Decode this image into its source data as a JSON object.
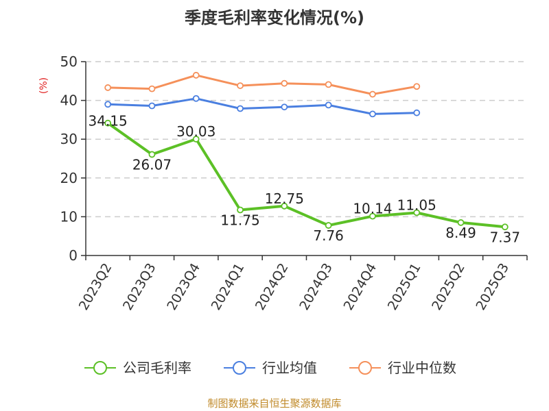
{
  "chart_data": {
    "type": "line",
    "title": "季度毛利率变化情况(%)",
    "ylabel": "(%)",
    "ylim": [
      0,
      50
    ],
    "yticks": [
      0,
      10,
      20,
      30,
      40,
      50
    ],
    "grid": true,
    "legend_position": "bottom",
    "categories": [
      "2023Q2",
      "2023Q3",
      "2023Q4",
      "2024Q1",
      "2024Q2",
      "2024Q3",
      "2024Q4",
      "2025Q1",
      "2025Q2",
      "2025Q3"
    ],
    "series": [
      {
        "name": "公司毛利率",
        "color": "#5cc026",
        "values": [
          34.15,
          26.07,
          30.03,
          11.75,
          12.75,
          7.76,
          10.14,
          11.05,
          8.49,
          7.37
        ],
        "labels": [
          "34.15",
          "26.07",
          "30.03",
          "11.75",
          "12.75",
          "7.76",
          "10.14",
          "11.05",
          "8.49",
          "7.37"
        ]
      },
      {
        "name": "行业均值",
        "color": "#4a7fe0",
        "values": [
          39.0,
          38.6,
          40.5,
          37.9,
          38.3,
          38.8,
          36.5,
          36.8,
          null,
          null
        ]
      },
      {
        "name": "行业中位数",
        "color": "#f5905a",
        "values": [
          43.3,
          43.0,
          46.5,
          43.8,
          44.4,
          44.1,
          41.6,
          43.6,
          null,
          null
        ]
      }
    ]
  },
  "footer": {
    "source": "制图数据来自恒生聚源数据库"
  }
}
